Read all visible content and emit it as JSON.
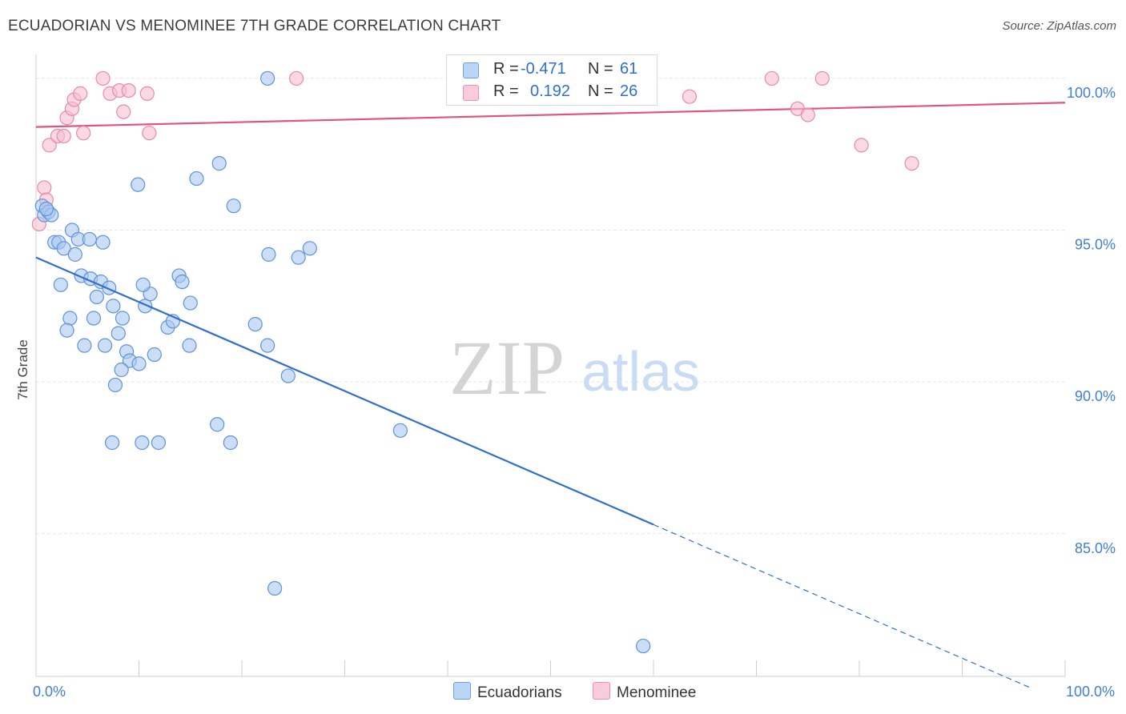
{
  "title": "ECUADORIAN VS MENOMINEE 7TH GRADE CORRELATION CHART",
  "source": "Source: ZipAtlas.com",
  "watermark": {
    "zip": "ZIP",
    "atlas": "atlas"
  },
  "legend": {
    "rows": [
      {
        "r_label": "R = ",
        "r_value": "-0.471",
        "n_label": "N = ",
        "n_value": "61"
      },
      {
        "r_label": "R = ",
        "r_value": "0.192",
        "n_label": "N = ",
        "n_value": "26"
      }
    ]
  },
  "bottom_legend": {
    "series1": "Ecuadorians",
    "series2": "Menominee"
  },
  "colors": {
    "ecuadorian_fill": "#a9c8f0",
    "ecuadorian_stroke": "#5d93db",
    "ecuadorian_line": "#2e6fd0",
    "menominee_fill": "#f7bfd0",
    "menominee_stroke": "#e98aa8",
    "menominee_line": "#e0557f",
    "tick_label": "#3f7fd6",
    "grid": "#e6e6e6"
  },
  "chart_data": {
    "type": "scatter",
    "xlabel": "",
    "ylabel": "7th Grade",
    "xlim": [
      0,
      100
    ],
    "ylim": [
      80.3,
      101.0
    ],
    "x_tick_labels": [
      {
        "value": 0,
        "label": "0.0%"
      },
      {
        "value": 100,
        "label": "100.0%"
      }
    ],
    "y_ticks": [
      {
        "value": 100,
        "label": "100.0%"
      },
      {
        "value": 95,
        "label": "95.0%"
      },
      {
        "value": 90,
        "label": "90.0%"
      },
      {
        "value": 85,
        "label": "85.0%"
      }
    ],
    "series": [
      {
        "name": "Ecuadorians",
        "r": -0.471,
        "n": 61,
        "trend": {
          "x0": 0,
          "y0": 94.1,
          "x1": 60,
          "y1": 85.3,
          "dash_to_x": 96.8,
          "dash_to_y": 79.9
        },
        "points": [
          [
            0.6,
            95.8
          ],
          [
            0.8,
            95.5
          ],
          [
            1.2,
            95.6
          ],
          [
            1.5,
            95.5
          ],
          [
            3.5,
            95.0
          ],
          [
            1.8,
            94.6
          ],
          [
            2.2,
            94.6
          ],
          [
            2.7,
            94.4
          ],
          [
            3.8,
            94.2
          ],
          [
            4.1,
            94.7
          ],
          [
            5.2,
            94.7
          ],
          [
            6.5,
            94.6
          ],
          [
            4.4,
            93.5
          ],
          [
            5.3,
            93.4
          ],
          [
            6.3,
            93.3
          ],
          [
            7.1,
            93.1
          ],
          [
            2.4,
            93.2
          ],
          [
            5.9,
            92.8
          ],
          [
            3.3,
            92.1
          ],
          [
            5.6,
            92.1
          ],
          [
            3.0,
            91.7
          ],
          [
            7.5,
            92.5
          ],
          [
            8.4,
            92.1
          ],
          [
            10.6,
            92.5
          ],
          [
            11.1,
            92.9
          ],
          [
            10.4,
            93.2
          ],
          [
            13.9,
            93.5
          ],
          [
            14.2,
            93.3
          ],
          [
            15.0,
            92.6
          ],
          [
            12.8,
            91.8
          ],
          [
            13.3,
            92.0
          ],
          [
            8.0,
            91.6
          ],
          [
            4.7,
            91.2
          ],
          [
            6.7,
            91.2
          ],
          [
            8.8,
            91.0
          ],
          [
            9.1,
            90.7
          ],
          [
            10.0,
            90.6
          ],
          [
            11.5,
            90.9
          ],
          [
            14.9,
            91.2
          ],
          [
            8.3,
            90.4
          ],
          [
            7.7,
            89.9
          ],
          [
            7.4,
            88.0
          ],
          [
            10.3,
            88.0
          ],
          [
            11.9,
            88.0
          ],
          [
            17.6,
            88.6
          ],
          [
            18.9,
            88.0
          ],
          [
            9.9,
            96.5
          ],
          [
            15.6,
            96.7
          ],
          [
            17.8,
            97.2
          ],
          [
            19.2,
            95.8
          ],
          [
            22.6,
            94.2
          ],
          [
            25.5,
            94.1
          ],
          [
            26.6,
            94.4
          ],
          [
            21.3,
            91.9
          ],
          [
            22.5,
            91.2
          ],
          [
            24.5,
            90.2
          ],
          [
            35.4,
            88.4
          ],
          [
            22.5,
            100.0
          ],
          [
            23.2,
            83.2
          ],
          [
            59.0,
            81.3
          ],
          [
            1.0,
            95.7
          ]
        ]
      },
      {
        "name": "Menominee",
        "r": 0.192,
        "n": 26,
        "trend": {
          "x0": 0,
          "y0": 98.4,
          "x1": 100,
          "y1": 99.2
        },
        "points": [
          [
            0.3,
            95.2
          ],
          [
            0.8,
            96.4
          ],
          [
            1.0,
            96.0
          ],
          [
            1.3,
            97.8
          ],
          [
            2.1,
            98.1
          ],
          [
            2.7,
            98.1
          ],
          [
            3.0,
            98.7
          ],
          [
            3.5,
            99.0
          ],
          [
            3.7,
            99.3
          ],
          [
            4.3,
            99.5
          ],
          [
            4.6,
            98.2
          ],
          [
            6.5,
            100.0
          ],
          [
            7.2,
            99.5
          ],
          [
            8.1,
            99.6
          ],
          [
            8.5,
            98.9
          ],
          [
            9.0,
            99.6
          ],
          [
            10.8,
            99.5
          ],
          [
            11.0,
            98.2
          ],
          [
            25.3,
            100.0
          ],
          [
            63.5,
            99.4
          ],
          [
            71.5,
            100.0
          ],
          [
            74.0,
            99.0
          ],
          [
            75.0,
            98.8
          ],
          [
            76.4,
            100.0
          ],
          [
            80.2,
            97.8
          ],
          [
            85.1,
            97.2
          ]
        ]
      }
    ]
  }
}
